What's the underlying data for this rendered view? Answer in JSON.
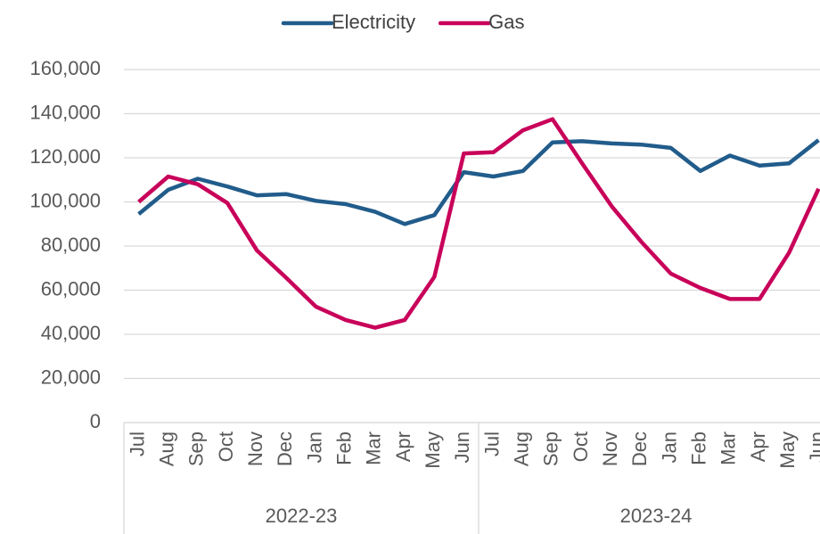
{
  "chart_data": {
    "type": "line",
    "categories": [
      "Jul",
      "Aug",
      "Sep",
      "Oct",
      "Nov",
      "Dec",
      "Jan",
      "Feb",
      "Mar",
      "Apr",
      "May",
      "Jun",
      "Jul",
      "Aug",
      "Sep",
      "Oct",
      "Nov",
      "Dec",
      "Jan",
      "Feb",
      "Mar",
      "Apr",
      "May",
      "Jun"
    ],
    "category_groups": [
      "2022-23",
      "2023-24"
    ],
    "series": [
      {
        "name": "Electricity",
        "color": "#215c8b",
        "values": [
          94500,
          105500,
          110500,
          107000,
          103000,
          103500,
          100500,
          99000,
          95500,
          90000,
          94000,
          113500,
          111500,
          114000,
          127000,
          127500,
          126500,
          126000,
          124500,
          114000,
          121000,
          116500,
          117500,
          128000
        ]
      },
      {
        "name": "Gas",
        "color": "#c8005a",
        "values": [
          100000,
          111500,
          108000,
          99500,
          78000,
          65500,
          52500,
          46500,
          43000,
          46500,
          66000,
          122000,
          122500,
          132500,
          137500,
          117500,
          98000,
          82000,
          67500,
          61000,
          56000,
          56000,
          77000,
          106000
        ]
      }
    ],
    "ylim": [
      0,
      160000
    ],
    "yticks": [
      0,
      {
        "value": 20000,
        "label": "20,000"
      },
      {
        "value": 40000,
        "label": "40,000"
      },
      {
        "value": 60000,
        "label": "60,000"
      },
      {
        "value": 80000,
        "label": "80,000"
      },
      {
        "value": 100000,
        "label": "100,000"
      },
      {
        "value": 120000,
        "label": "120,000"
      },
      {
        "value": 140000,
        "label": "140,000"
      },
      {
        "value": 160000,
        "label": "160,000"
      }
    ],
    "grid": true,
    "legend": "top"
  }
}
